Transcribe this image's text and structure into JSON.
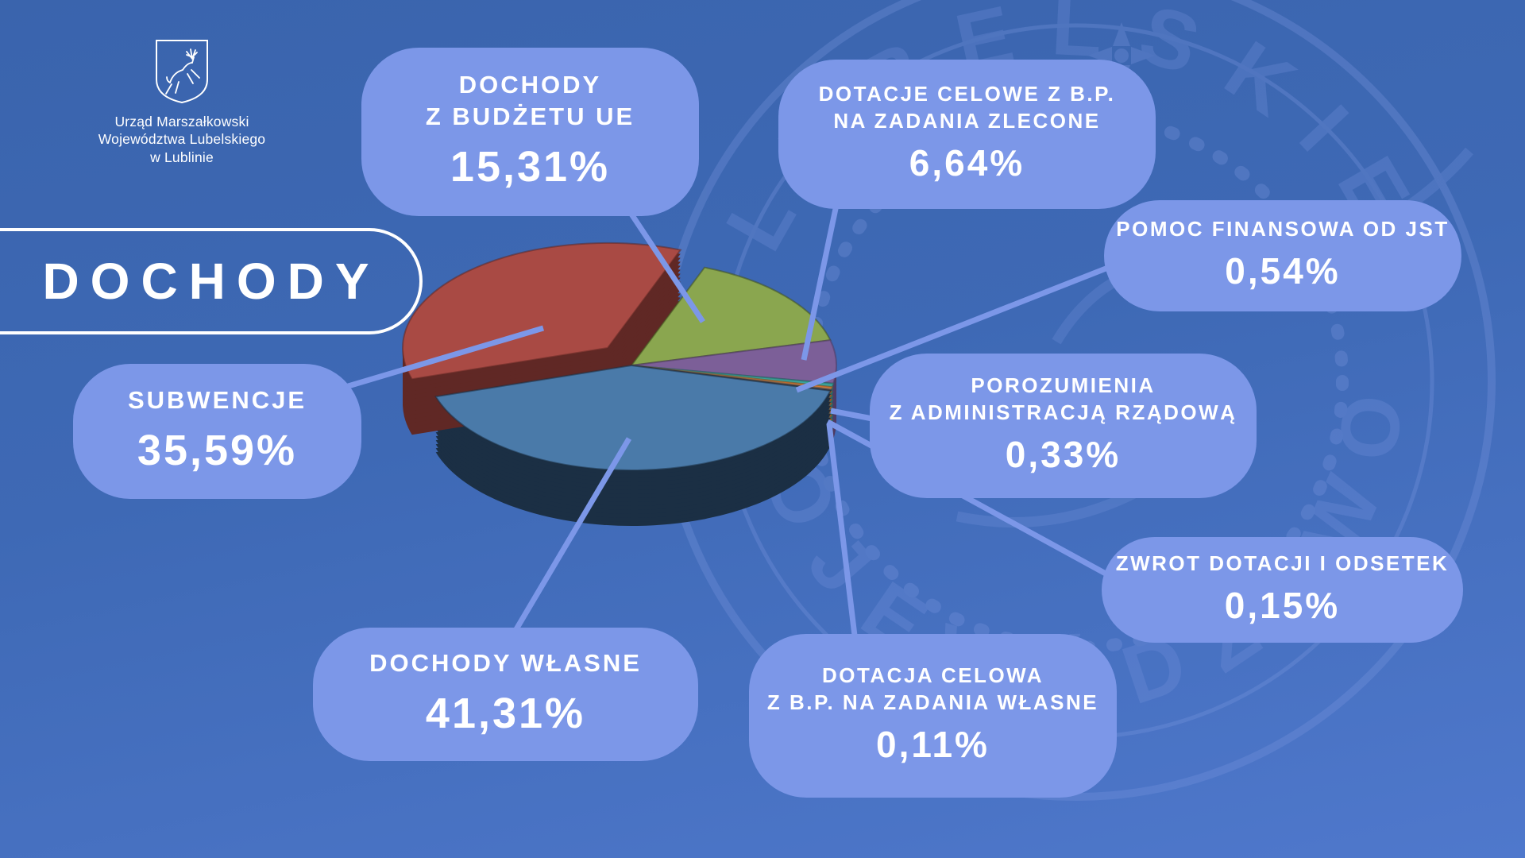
{
  "page": {
    "title": "DOCHODY"
  },
  "logo": {
    "emblem": "stag-shield-coat-of-arms",
    "org_lines": [
      "Urząd Marszałkowski",
      "Województwa Lubelskiego",
      "w Lublinie"
    ]
  },
  "theme": {
    "background_top": "#3a64ad",
    "background_bottom": "#4f78cc",
    "bubble_color": "#7c97e8",
    "leader_line_color": "#7c97e8",
    "text_color": "#ffffff",
    "title_outline_color": "#ffffff",
    "watermark_color": "#7995de"
  },
  "watermark": {
    "arc_text_top": "LUBELSKIE",
    "arc_text_bottom": "WOJEWÓDZTWO"
  },
  "chart_data": {
    "type": "pie",
    "title": "DOCHODY",
    "unit": "%",
    "legend_position": "callout-bubbles",
    "slices": [
      {
        "id": "dochody-wlasne",
        "label_lines": [
          "DOCHODY WŁASNE"
        ],
        "percent_label": "41,31%",
        "value": 41.31,
        "color": "#4a7aa9",
        "side_color": "#1b2f44",
        "exploded": false
      },
      {
        "id": "subwencje",
        "label_lines": [
          "SUBWENCJE"
        ],
        "percent_label": "35,59%",
        "value": 35.59,
        "color": "#a94a44",
        "side_color": "#602825",
        "exploded": true
      },
      {
        "id": "dochody-z-budzetu-ue",
        "label_lines": [
          "DOCHODY",
          "Z BUDŻETU UE"
        ],
        "percent_label": "15,31%",
        "value": 15.31,
        "color": "#8aa64f",
        "side_color": "#42521f",
        "exploded": false
      },
      {
        "id": "dotacje-celowe-zlecone",
        "label_lines": [
          "DOTACJE CELOWE Z B.P.",
          "NA ZADANIA ZLECONE"
        ],
        "percent_label": "6,64%",
        "value": 6.64,
        "color": "#7c5f98",
        "side_color": "#4e3b63",
        "exploded": false
      },
      {
        "id": "pomoc-finansowa-jst",
        "label_lines": [
          "POMOC FINANSOWA OD JST"
        ],
        "percent_label": "0,54%",
        "value": 0.54,
        "color": "#3aa29a",
        "side_color": "#236e68",
        "exploded": false
      },
      {
        "id": "porozumienia",
        "label_lines": [
          "POROZUMIENIA",
          "Z ADMINISTRACJĄ RZĄDOWĄ"
        ],
        "percent_label": "0,33%",
        "value": 0.33,
        "color": "#df813a",
        "side_color": "#99561f",
        "exploded": false
      },
      {
        "id": "zwrot-dotacji",
        "label_lines": [
          "ZWROT DOTACJI I ODSETEK"
        ],
        "percent_label": "0,15%",
        "value": 0.15,
        "color": "#989898",
        "side_color": "#5c5c5c",
        "exploded": false
      },
      {
        "id": "dotacja-celowa-wlasne",
        "label_lines": [
          "DOTACJA CELOWA",
          "Z B.P. NA ZADANIA WŁASNE"
        ],
        "percent_label": "0,11%",
        "value": 0.11,
        "color": "#5a3a34",
        "side_color": "#32201c",
        "exploded": false
      }
    ]
  }
}
